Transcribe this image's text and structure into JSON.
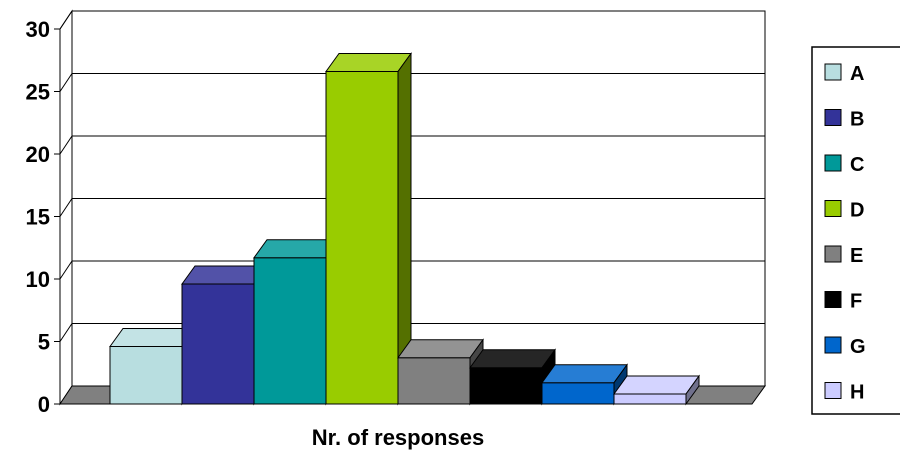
{
  "chart_data": {
    "type": "bar",
    "style": "3d-columns",
    "categories": [
      "A",
      "B",
      "C",
      "D",
      "E",
      "F",
      "G",
      "H"
    ],
    "values": [
      4.6,
      9.6,
      11.7,
      26.6,
      3.7,
      2.9,
      1.7,
      0.8
    ],
    "colors": [
      "#B8DEE0",
      "#333399",
      "#009999",
      "#99CC00",
      "#808080",
      "#000000",
      "#0066CC",
      "#CCCCFF"
    ],
    "xlabel": "Nr. of responses",
    "ylabel": "",
    "ylim": [
      0,
      30
    ],
    "yticks": [
      0,
      5,
      10,
      15,
      20,
      25,
      30
    ],
    "grid": true,
    "legend": {
      "position": "right",
      "entries": [
        "A",
        "B",
        "C",
        "D",
        "E",
        "F",
        "G",
        "H"
      ]
    }
  }
}
